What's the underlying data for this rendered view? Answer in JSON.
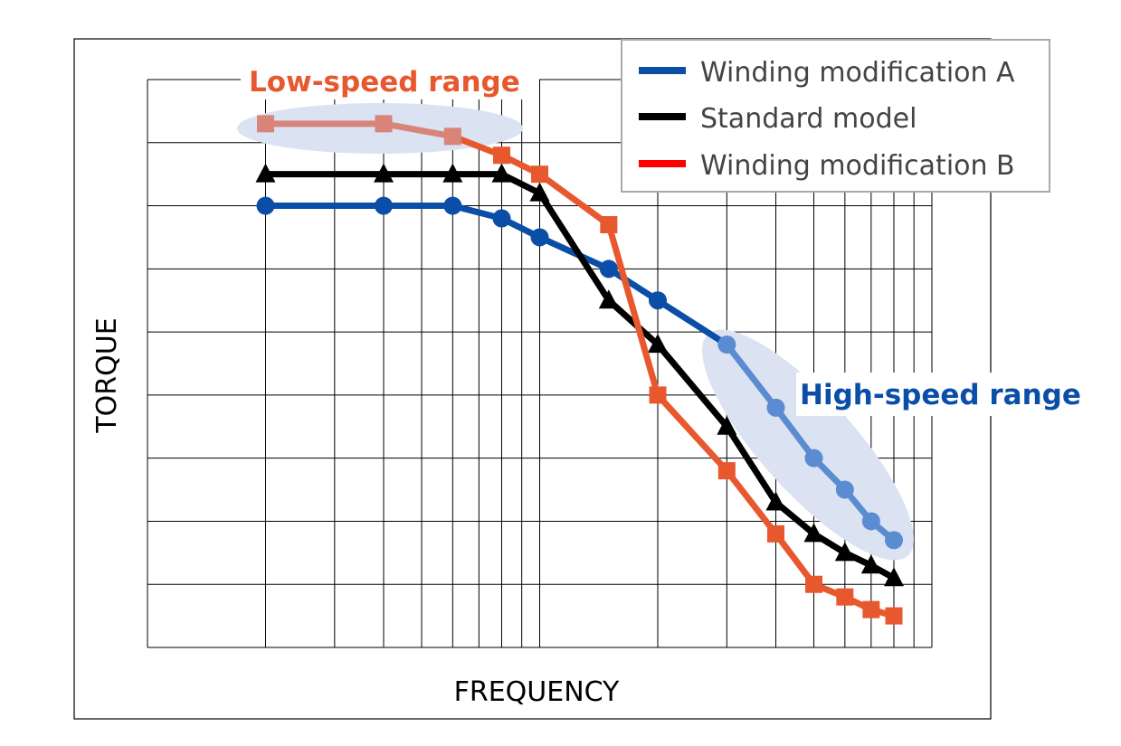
{
  "chart_data": {
    "type": "line",
    "xlabel": "FREQUENCY",
    "ylabel": "TORQUE",
    "x_scale": "log",
    "xlim": [
      1,
      100
    ],
    "ylim": [
      0,
      9
    ],
    "grid": true,
    "tick_labels_shown": false,
    "legend_placement": "top-right",
    "series": [
      {
        "name": "Winding modification A",
        "color": "#0a4ea8",
        "marker": "circle",
        "x": [
          2,
          4,
          6,
          8,
          10,
          15,
          20,
          30,
          40,
          50,
          60,
          70,
          80
        ],
        "y": [
          7.0,
          7.0,
          7.0,
          6.8,
          6.5,
          6.0,
          5.5,
          4.8,
          3.8,
          3.0,
          2.5,
          2.0,
          1.7
        ]
      },
      {
        "name": "Standard model",
        "color": "#000000",
        "marker": "triangle",
        "x": [
          2,
          4,
          6,
          8,
          10,
          15,
          20,
          30,
          40,
          50,
          60,
          70,
          80
        ],
        "y": [
          7.5,
          7.5,
          7.5,
          7.5,
          7.2,
          5.5,
          4.8,
          3.5,
          2.3,
          1.8,
          1.5,
          1.3,
          1.1
        ]
      },
      {
        "name": "Winding modification B",
        "color": "#e8582f",
        "legend_color": "#ff0000",
        "marker": "square",
        "x": [
          2,
          4,
          6,
          8,
          10,
          15,
          20,
          30,
          40,
          50,
          60,
          70,
          80
        ],
        "y": [
          8.3,
          8.3,
          8.1,
          7.8,
          7.5,
          6.7,
          4.0,
          2.8,
          1.8,
          1.0,
          0.8,
          0.6,
          0.5
        ]
      }
    ],
    "annotations": [
      {
        "text": "Low-speed range",
        "color": "#e8582f",
        "highlight_series": "Winding modification B",
        "highlight_x": [
          2,
          6
        ],
        "highlight_color": "#d88479"
      },
      {
        "text": "High-speed range",
        "color": "#0a4ea8",
        "highlight_series": "Winding modification A",
        "highlight_x": [
          30,
          80
        ],
        "highlight_color": "#5b8bd0"
      }
    ]
  }
}
